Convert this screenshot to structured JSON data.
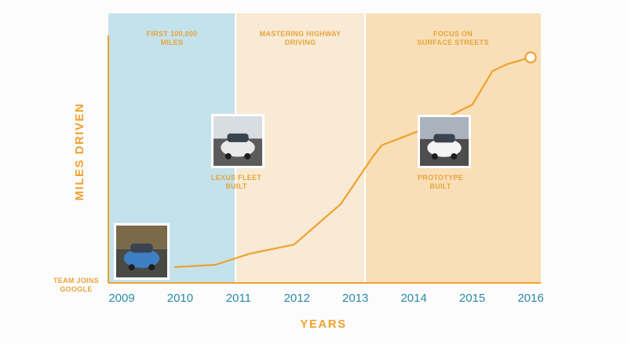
{
  "colors": {
    "phase1": "#c4e2ec",
    "phase2": "#f8ead4",
    "phase3": "#f8dfb8",
    "accent": "#f0a12e",
    "tick": "#2b8aa3"
  },
  "chart_data": {
    "type": "line",
    "xlabel": "YEARS",
    "ylabel": "MILES DRIVEN",
    "x_ticks": [
      "2009",
      "2010",
      "2011",
      "2012",
      "2013",
      "2014",
      "2015",
      "2016"
    ],
    "xlim": [
      2009,
      2016.2
    ],
    "phases": [
      {
        "label_lines": [
          "FIRST 100,000",
          "MILES"
        ],
        "start": 2009,
        "end": 2011
      },
      {
        "label_lines": [
          "MASTERING HIGHWAY",
          "DRIVING"
        ],
        "start": 2011,
        "end": 2012.25
      },
      {
        "label_lines": [
          "FOCUS ON",
          "SURFACE STREETS"
        ],
        "start": 2012.25,
        "end": 2016.2
      }
    ],
    "start_label_lines": [
      "TEAM JOINS",
      "GOOGLE"
    ],
    "annotations": [
      {
        "label_lines": [
          "LEXUS FLEET",
          "BUILT"
        ],
        "x": 2011
      },
      {
        "label_lines": [
          "PROTOTYPE",
          "BUILT"
        ],
        "x": 2014.6
      }
    ],
    "series": [
      {
        "x": [
          2009.9,
          2010.6,
          2011.2,
          2011.95,
          2012.75,
          2013.3,
          2013.45,
          2014.05,
          2015,
          2015.35,
          2015.6,
          2016
        ],
        "y": [
          0.07,
          0.08,
          0.13,
          0.17,
          0.35,
          0.56,
          0.61,
          0.67,
          0.79,
          0.94,
          0.97,
          1.0
        ]
      }
    ]
  }
}
